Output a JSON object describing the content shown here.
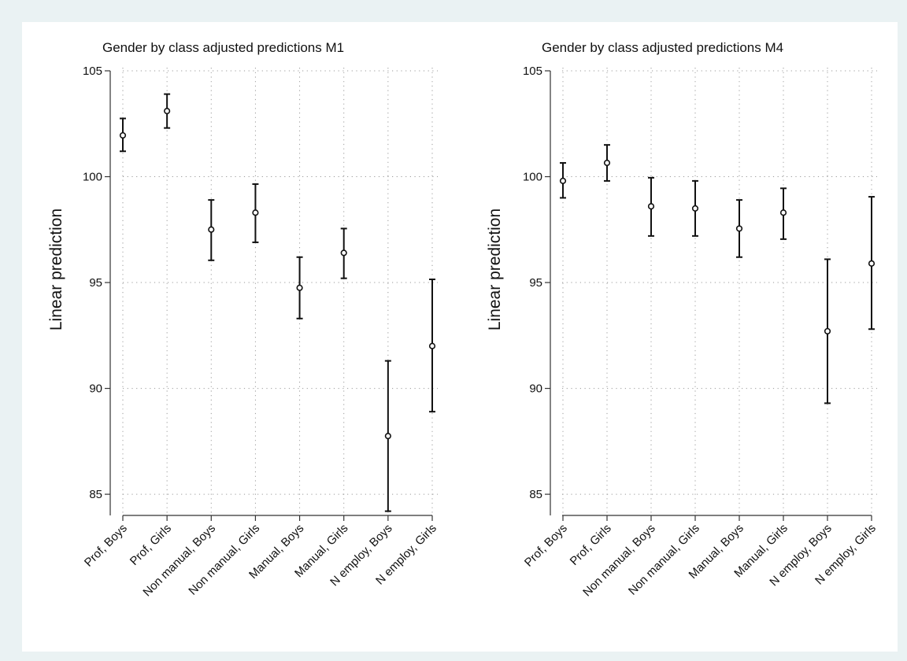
{
  "chart_data": [
    {
      "type": "scatter",
      "title": "Gender by class adjusted predictions M1",
      "xlabel": "",
      "ylabel": "Linear prediction",
      "ylim": [
        84,
        105
      ],
      "yticks": [
        85,
        90,
        95,
        100,
        105
      ],
      "grid": true,
      "categories": [
        "Prof, Boys",
        "Prof, Girls",
        "Non manual, Boys",
        "Non manual, Girls",
        "Manual, Boys",
        "Manual, Girls",
        "N employ, Boys",
        "N employ, Girls"
      ],
      "series": [
        {
          "values": [
            101.95,
            103.1,
            97.5,
            98.3,
            94.75,
            96.4,
            87.75,
            92.0
          ],
          "ci_low": [
            101.2,
            102.3,
            96.05,
            96.9,
            93.3,
            95.2,
            84.2,
            88.9
          ],
          "ci_high": [
            102.75,
            103.9,
            98.9,
            99.65,
            96.2,
            97.55,
            91.3,
            95.15
          ]
        }
      ]
    },
    {
      "type": "scatter",
      "title": "Gender by class adjusted predictions M4",
      "xlabel": "",
      "ylabel": "Linear prediction",
      "ylim": [
        84,
        105
      ],
      "yticks": [
        85,
        90,
        95,
        100,
        105
      ],
      "grid": true,
      "categories": [
        "Prof, Boys",
        "Prof, Girls",
        "Non manual, Boys",
        "Non manual, Girls",
        "Manual, Boys",
        "Manual, Girls",
        "N employ, Boys",
        "N employ, Girls"
      ],
      "series": [
        {
          "values": [
            99.8,
            100.65,
            98.6,
            98.5,
            97.55,
            98.3,
            92.7,
            95.9
          ],
          "ci_low": [
            99.0,
            99.8,
            97.2,
            97.2,
            96.2,
            97.05,
            89.3,
            92.8
          ],
          "ci_high": [
            100.65,
            101.5,
            99.95,
            99.8,
            98.9,
            99.45,
            96.1,
            99.05
          ]
        }
      ]
    }
  ]
}
